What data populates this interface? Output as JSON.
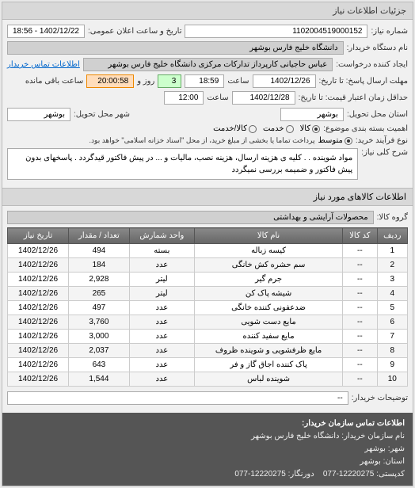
{
  "panel_title": "جزئیات اطلاعات نیاز",
  "fields": {
    "request_number_label": "شماره نیاز:",
    "request_number": "1102004519000152",
    "announce_datetime_label": "تاریخ و ساعت اعلان عمومی:",
    "announce_datetime": "1402/12/22 - 18:56",
    "buyer_org_label": "نام دستگاه خریدار:",
    "buyer_org": "دانشگاه خلیج فارس بوشهر",
    "requester_label": "ایجاد کننده درخواست:",
    "requester": "عباس حاجیانی کارپرداز تدارکات مرکزی دانشگاه خلیج فارس بوشهر",
    "buyer_contact_link": "اطلاعات تماس خریدار",
    "deadline_label": "مهلت ارسال پاسخ: تا تاریخ:",
    "deadline_date": "1402/12/26",
    "deadline_time_label": "ساعت",
    "deadline_time": "18:59",
    "days_label": "روز و",
    "days_value": "3",
    "remaining_label": "ساعت باقی مانده",
    "remaining_time": "20:00:58",
    "validity_label": "حداقل زمان اعتبار قیمت: تا تاریخ:",
    "validity_date": "1402/12/28",
    "validity_time_label": "ساعت",
    "validity_time": "12:00",
    "delivery_province_label": "استان محل تحویل:",
    "delivery_province": "بوشهر",
    "delivery_city_label": "شهر محل تحویل:",
    "delivery_city": "بوشهر",
    "packaging_label": "اهمیت بسته بندی موضوع:",
    "pkg_opt1": "کالا",
    "pkg_opt2": "خدمت",
    "pkg_opt3": "کالا/خدمت",
    "estimation_label": "نوع فرآیند خرید:",
    "est_opt1": "متوسط",
    "est_note": "پرداخت تماما یا بخشی از مبلغ خرید، از محل \"اسناد خزانه اسلامی\" خواهد بود.",
    "general_terms_label": "شرح کلی نیاز:",
    "general_terms": "مواد شوینده . . کلیه ی هزینه ارسال، هزینه نصب، مالیات و ... در پیش فاکتور قیدگردد . پاسخهای بدون پیش فاکتور و ضمیمه بررسی نمیگردد"
  },
  "goods_section_title": "اطلاعات کالاهای مورد نیاز",
  "group_label": "گروه کالا:",
  "group_value": "محصولات آرایشی و بهداشتی",
  "table": {
    "columns": [
      "ردیف",
      "کد کالا",
      "نام کالا",
      "واحد شمارش",
      "تعداد / مقدار",
      "تاریخ نیاز"
    ],
    "rows": [
      [
        "1",
        "--",
        "کیسه زباله",
        "بسته",
        "494",
        "1402/12/26"
      ],
      [
        "2",
        "--",
        "سم حشره کش خانگی",
        "عدد",
        "184",
        "1402/12/26"
      ],
      [
        "3",
        "--",
        "جرم گیر",
        "لیتر",
        "2,928",
        "1402/12/26"
      ],
      [
        "4",
        "--",
        "شیشه پاک کن",
        "لیتر",
        "265",
        "1402/12/26"
      ],
      [
        "5",
        "--",
        "ضدعفونی کننده خانگی",
        "عدد",
        "497",
        "1402/12/26"
      ],
      [
        "6",
        "--",
        "مایع دست شویی",
        "عدد",
        "3,760",
        "1402/12/26"
      ],
      [
        "7",
        "--",
        "مایع سفید کننده",
        "عدد",
        "3,000",
        "1402/12/26"
      ],
      [
        "8",
        "--",
        "مایع ظرفشویی و شوینده ظروف",
        "عدد",
        "2,037",
        "1402/12/26"
      ],
      [
        "9",
        "--",
        "پاک کننده اجاق گاز و فر",
        "عدد",
        "643",
        "1402/12/26"
      ],
      [
        "10",
        "--",
        "شوینده لباس",
        "عدد",
        "1,544",
        "1402/12/26"
      ]
    ]
  },
  "buyer_desc_label": "توضیحات خریدار:",
  "buyer_desc_value": "--",
  "footer": {
    "title": "اطلاعات تماس سازمان خریدار:",
    "org_label": "نام سازمان خریدار:",
    "org": "دانشگاه خلیج فارس بوشهر",
    "city_label": "شهر:",
    "city": "بوشهر",
    "province_label": "استان:",
    "province": "بوشهر",
    "postal_label": "کدپستی:",
    "postal": "12220275-077",
    "fax_label": "دورنگار:",
    "fax": "12220275-077"
  }
}
